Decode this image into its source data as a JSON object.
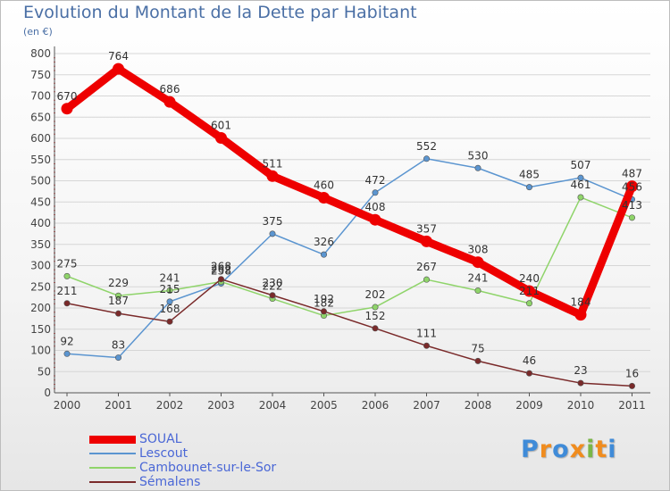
{
  "title": "Evolution du Montant de la Dette par Habitant",
  "subtitle": "(en €)",
  "logo": {
    "text": "Proxiti",
    "letters": [
      "P",
      "r",
      "o",
      "x",
      "i",
      "t",
      "i"
    ],
    "colors": [
      "#3f8bd8",
      "#f08c1e",
      "#3f8bd8",
      "#f08c1e",
      "#7ab648",
      "#f08c1e",
      "#3f8bd8"
    ]
  },
  "chart_data": {
    "type": "line",
    "title": "Evolution du Montant de la Dette par Habitant",
    "subtitle": "(en €)",
    "x": [
      "2000",
      "2001",
      "2002",
      "2003",
      "2004",
      "2005",
      "2006",
      "2007",
      "2008",
      "2009",
      "2010",
      "2011"
    ],
    "yticks": [
      "0",
      "50",
      "100",
      "150",
      "200",
      "250",
      "300",
      "350",
      "400",
      "450",
      "500",
      "550",
      "600",
      "650",
      "700",
      "750",
      "800"
    ],
    "ylim": [
      0,
      800
    ],
    "grid": "horizontal",
    "legend_position": "bottom-left",
    "series": [
      {
        "name": "SOUAL",
        "color": "#ee0000",
        "values": [
          670,
          764,
          686,
          601,
          511,
          460,
          408,
          357,
          308,
          240,
          184,
          487
        ],
        "labels": [
          "670",
          "764",
          "686",
          "601",
          "511",
          "460",
          "408",
          "357",
          "308",
          "240",
          "184",
          "487"
        ]
      },
      {
        "name": "Lescout",
        "color": "#5b95d0",
        "values": [
          92,
          83,
          215,
          258,
          375,
          326,
          472,
          552,
          530,
          485,
          507,
          456
        ],
        "labels": [
          "92",
          "83",
          "215",
          "258",
          "375",
          "326",
          "472",
          "552",
          "530",
          "485",
          "507",
          "456"
        ]
      },
      {
        "name": "Cambounet-sur-le-Sor",
        "color": "#8fd46a",
        "values": [
          275,
          229,
          241,
          262,
          222,
          182,
          202,
          267,
          241,
          211,
          461,
          413
        ],
        "labels": [
          "275",
          "229",
          "241",
          "262",
          "222",
          "182",
          "202",
          "267",
          "241",
          "211",
          "461",
          "413"
        ]
      },
      {
        "name": "Sémalens",
        "color": "#7a2a2a",
        "values": [
          211,
          187,
          168,
          268,
          230,
          192,
          152,
          111,
          75,
          46,
          23,
          16
        ],
        "labels": [
          "211",
          "187",
          "168",
          "268",
          "230",
          "192",
          "152",
          "111",
          "75",
          "46",
          "23",
          "16"
        ]
      }
    ]
  }
}
